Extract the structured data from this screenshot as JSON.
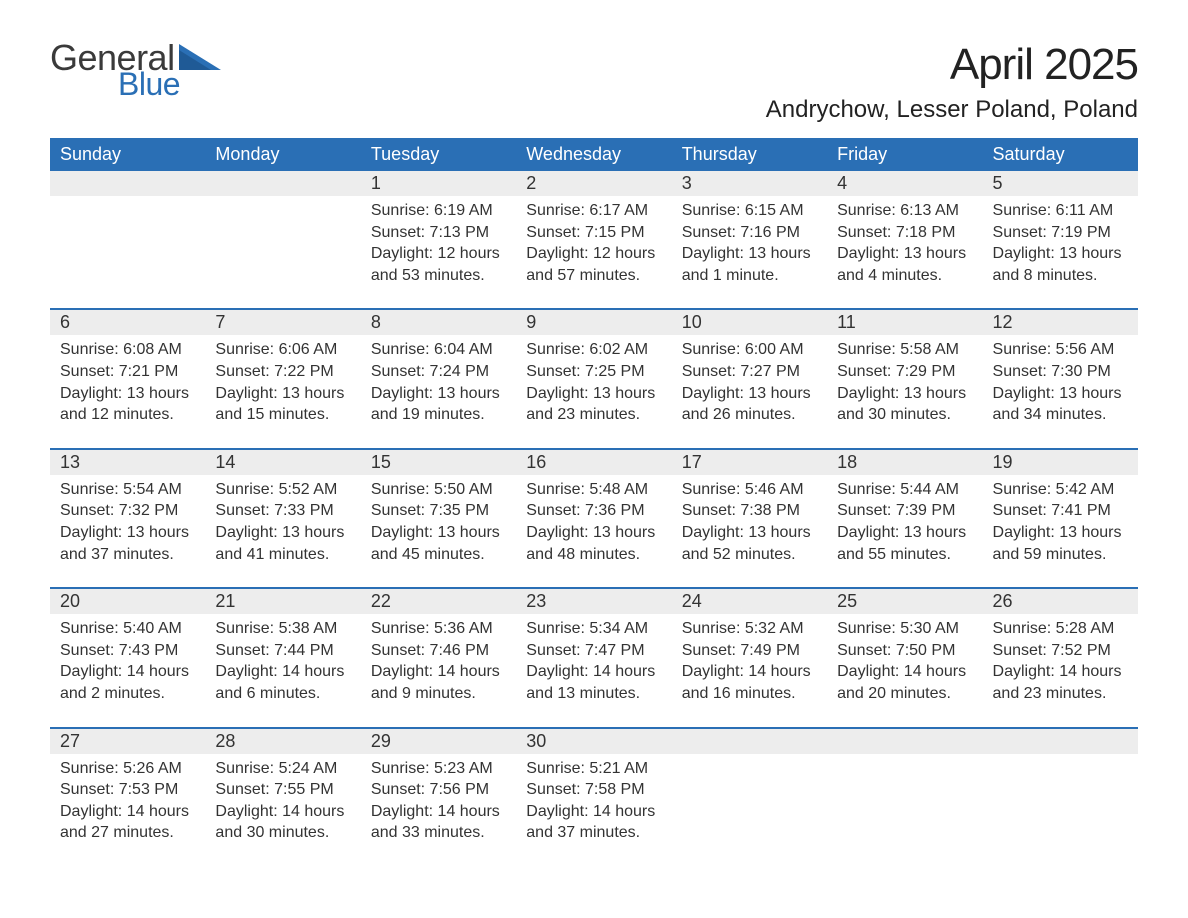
{
  "logo": {
    "text1": "General",
    "text2": "Blue",
    "flag_color": "#2a6fb5",
    "text1_color": "#3a3a3a"
  },
  "title": "April 2025",
  "location": "Andrychow, Lesser Poland, Poland",
  "colors": {
    "header_bg": "#2a6fb5",
    "header_text": "#ffffff",
    "daynum_bg": "#ededed",
    "row_border": "#2a6fb5",
    "body_text": "#333333",
    "page_bg": "#ffffff"
  },
  "weekdays": [
    "Sunday",
    "Monday",
    "Tuesday",
    "Wednesday",
    "Thursday",
    "Friday",
    "Saturday"
  ],
  "weeks": [
    [
      null,
      null,
      {
        "n": "1",
        "sr": "6:19 AM",
        "ss": "7:13 PM",
        "dl": "12 hours and 53 minutes."
      },
      {
        "n": "2",
        "sr": "6:17 AM",
        "ss": "7:15 PM",
        "dl": "12 hours and 57 minutes."
      },
      {
        "n": "3",
        "sr": "6:15 AM",
        "ss": "7:16 PM",
        "dl": "13 hours and 1 minute."
      },
      {
        "n": "4",
        "sr": "6:13 AM",
        "ss": "7:18 PM",
        "dl": "13 hours and 4 minutes."
      },
      {
        "n": "5",
        "sr": "6:11 AM",
        "ss": "7:19 PM",
        "dl": "13 hours and 8 minutes."
      }
    ],
    [
      {
        "n": "6",
        "sr": "6:08 AM",
        "ss": "7:21 PM",
        "dl": "13 hours and 12 minutes."
      },
      {
        "n": "7",
        "sr": "6:06 AM",
        "ss": "7:22 PM",
        "dl": "13 hours and 15 minutes."
      },
      {
        "n": "8",
        "sr": "6:04 AM",
        "ss": "7:24 PM",
        "dl": "13 hours and 19 minutes."
      },
      {
        "n": "9",
        "sr": "6:02 AM",
        "ss": "7:25 PM",
        "dl": "13 hours and 23 minutes."
      },
      {
        "n": "10",
        "sr": "6:00 AM",
        "ss": "7:27 PM",
        "dl": "13 hours and 26 minutes."
      },
      {
        "n": "11",
        "sr": "5:58 AM",
        "ss": "7:29 PM",
        "dl": "13 hours and 30 minutes."
      },
      {
        "n": "12",
        "sr": "5:56 AM",
        "ss": "7:30 PM",
        "dl": "13 hours and 34 minutes."
      }
    ],
    [
      {
        "n": "13",
        "sr": "5:54 AM",
        "ss": "7:32 PM",
        "dl": "13 hours and 37 minutes."
      },
      {
        "n": "14",
        "sr": "5:52 AM",
        "ss": "7:33 PM",
        "dl": "13 hours and 41 minutes."
      },
      {
        "n": "15",
        "sr": "5:50 AM",
        "ss": "7:35 PM",
        "dl": "13 hours and 45 minutes."
      },
      {
        "n": "16",
        "sr": "5:48 AM",
        "ss": "7:36 PM",
        "dl": "13 hours and 48 minutes."
      },
      {
        "n": "17",
        "sr": "5:46 AM",
        "ss": "7:38 PM",
        "dl": "13 hours and 52 minutes."
      },
      {
        "n": "18",
        "sr": "5:44 AM",
        "ss": "7:39 PM",
        "dl": "13 hours and 55 minutes."
      },
      {
        "n": "19",
        "sr": "5:42 AM",
        "ss": "7:41 PM",
        "dl": "13 hours and 59 minutes."
      }
    ],
    [
      {
        "n": "20",
        "sr": "5:40 AM",
        "ss": "7:43 PM",
        "dl": "14 hours and 2 minutes."
      },
      {
        "n": "21",
        "sr": "5:38 AM",
        "ss": "7:44 PM",
        "dl": "14 hours and 6 minutes."
      },
      {
        "n": "22",
        "sr": "5:36 AM",
        "ss": "7:46 PM",
        "dl": "14 hours and 9 minutes."
      },
      {
        "n": "23",
        "sr": "5:34 AM",
        "ss": "7:47 PM",
        "dl": "14 hours and 13 minutes."
      },
      {
        "n": "24",
        "sr": "5:32 AM",
        "ss": "7:49 PM",
        "dl": "14 hours and 16 minutes."
      },
      {
        "n": "25",
        "sr": "5:30 AM",
        "ss": "7:50 PM",
        "dl": "14 hours and 20 minutes."
      },
      {
        "n": "26",
        "sr": "5:28 AM",
        "ss": "7:52 PM",
        "dl": "14 hours and 23 minutes."
      }
    ],
    [
      {
        "n": "27",
        "sr": "5:26 AM",
        "ss": "7:53 PM",
        "dl": "14 hours and 27 minutes."
      },
      {
        "n": "28",
        "sr": "5:24 AM",
        "ss": "7:55 PM",
        "dl": "14 hours and 30 minutes."
      },
      {
        "n": "29",
        "sr": "5:23 AM",
        "ss": "7:56 PM",
        "dl": "14 hours and 33 minutes."
      },
      {
        "n": "30",
        "sr": "5:21 AM",
        "ss": "7:58 PM",
        "dl": "14 hours and 37 minutes."
      },
      null,
      null,
      null
    ]
  ],
  "labels": {
    "sunrise": "Sunrise: ",
    "sunset": "Sunset: ",
    "daylight": "Daylight: "
  }
}
